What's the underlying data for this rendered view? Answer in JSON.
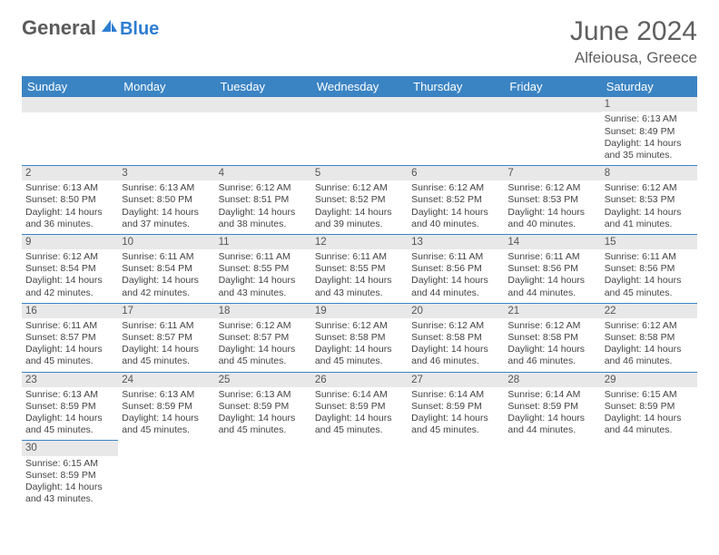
{
  "logo": {
    "general": "General",
    "blue": "Blue"
  },
  "title": "June 2024",
  "location": "Alfeiousa, Greece",
  "colors": {
    "header_bg": "#3b84c4",
    "header_text": "#ffffff",
    "daynum_bg": "#e8e8e8",
    "border": "#3b84c4",
    "text": "#444444",
    "title_text": "#5f5f5f",
    "logo_general": "#5a5a5a",
    "logo_blue": "#2d7dd2"
  },
  "weekdays": [
    "Sunday",
    "Monday",
    "Tuesday",
    "Wednesday",
    "Thursday",
    "Friday",
    "Saturday"
  ],
  "weeks": [
    [
      null,
      null,
      null,
      null,
      null,
      null,
      {
        "n": "1",
        "sr": "Sunrise: 6:13 AM",
        "ss": "Sunset: 8:49 PM",
        "d1": "Daylight: 14 hours",
        "d2": "and 35 minutes."
      }
    ],
    [
      {
        "n": "2",
        "sr": "Sunrise: 6:13 AM",
        "ss": "Sunset: 8:50 PM",
        "d1": "Daylight: 14 hours",
        "d2": "and 36 minutes."
      },
      {
        "n": "3",
        "sr": "Sunrise: 6:13 AM",
        "ss": "Sunset: 8:50 PM",
        "d1": "Daylight: 14 hours",
        "d2": "and 37 minutes."
      },
      {
        "n": "4",
        "sr": "Sunrise: 6:12 AM",
        "ss": "Sunset: 8:51 PM",
        "d1": "Daylight: 14 hours",
        "d2": "and 38 minutes."
      },
      {
        "n": "5",
        "sr": "Sunrise: 6:12 AM",
        "ss": "Sunset: 8:52 PM",
        "d1": "Daylight: 14 hours",
        "d2": "and 39 minutes."
      },
      {
        "n": "6",
        "sr": "Sunrise: 6:12 AM",
        "ss": "Sunset: 8:52 PM",
        "d1": "Daylight: 14 hours",
        "d2": "and 40 minutes."
      },
      {
        "n": "7",
        "sr": "Sunrise: 6:12 AM",
        "ss": "Sunset: 8:53 PM",
        "d1": "Daylight: 14 hours",
        "d2": "and 40 minutes."
      },
      {
        "n": "8",
        "sr": "Sunrise: 6:12 AM",
        "ss": "Sunset: 8:53 PM",
        "d1": "Daylight: 14 hours",
        "d2": "and 41 minutes."
      }
    ],
    [
      {
        "n": "9",
        "sr": "Sunrise: 6:12 AM",
        "ss": "Sunset: 8:54 PM",
        "d1": "Daylight: 14 hours",
        "d2": "and 42 minutes."
      },
      {
        "n": "10",
        "sr": "Sunrise: 6:11 AM",
        "ss": "Sunset: 8:54 PM",
        "d1": "Daylight: 14 hours",
        "d2": "and 42 minutes."
      },
      {
        "n": "11",
        "sr": "Sunrise: 6:11 AM",
        "ss": "Sunset: 8:55 PM",
        "d1": "Daylight: 14 hours",
        "d2": "and 43 minutes."
      },
      {
        "n": "12",
        "sr": "Sunrise: 6:11 AM",
        "ss": "Sunset: 8:55 PM",
        "d1": "Daylight: 14 hours",
        "d2": "and 43 minutes."
      },
      {
        "n": "13",
        "sr": "Sunrise: 6:11 AM",
        "ss": "Sunset: 8:56 PM",
        "d1": "Daylight: 14 hours",
        "d2": "and 44 minutes."
      },
      {
        "n": "14",
        "sr": "Sunrise: 6:11 AM",
        "ss": "Sunset: 8:56 PM",
        "d1": "Daylight: 14 hours",
        "d2": "and 44 minutes."
      },
      {
        "n": "15",
        "sr": "Sunrise: 6:11 AM",
        "ss": "Sunset: 8:56 PM",
        "d1": "Daylight: 14 hours",
        "d2": "and 45 minutes."
      }
    ],
    [
      {
        "n": "16",
        "sr": "Sunrise: 6:11 AM",
        "ss": "Sunset: 8:57 PM",
        "d1": "Daylight: 14 hours",
        "d2": "and 45 minutes."
      },
      {
        "n": "17",
        "sr": "Sunrise: 6:11 AM",
        "ss": "Sunset: 8:57 PM",
        "d1": "Daylight: 14 hours",
        "d2": "and 45 minutes."
      },
      {
        "n": "18",
        "sr": "Sunrise: 6:12 AM",
        "ss": "Sunset: 8:57 PM",
        "d1": "Daylight: 14 hours",
        "d2": "and 45 minutes."
      },
      {
        "n": "19",
        "sr": "Sunrise: 6:12 AM",
        "ss": "Sunset: 8:58 PM",
        "d1": "Daylight: 14 hours",
        "d2": "and 45 minutes."
      },
      {
        "n": "20",
        "sr": "Sunrise: 6:12 AM",
        "ss": "Sunset: 8:58 PM",
        "d1": "Daylight: 14 hours",
        "d2": "and 46 minutes."
      },
      {
        "n": "21",
        "sr": "Sunrise: 6:12 AM",
        "ss": "Sunset: 8:58 PM",
        "d1": "Daylight: 14 hours",
        "d2": "and 46 minutes."
      },
      {
        "n": "22",
        "sr": "Sunrise: 6:12 AM",
        "ss": "Sunset: 8:58 PM",
        "d1": "Daylight: 14 hours",
        "d2": "and 46 minutes."
      }
    ],
    [
      {
        "n": "23",
        "sr": "Sunrise: 6:13 AM",
        "ss": "Sunset: 8:59 PM",
        "d1": "Daylight: 14 hours",
        "d2": "and 45 minutes."
      },
      {
        "n": "24",
        "sr": "Sunrise: 6:13 AM",
        "ss": "Sunset: 8:59 PM",
        "d1": "Daylight: 14 hours",
        "d2": "and 45 minutes."
      },
      {
        "n": "25",
        "sr": "Sunrise: 6:13 AM",
        "ss": "Sunset: 8:59 PM",
        "d1": "Daylight: 14 hours",
        "d2": "and 45 minutes."
      },
      {
        "n": "26",
        "sr": "Sunrise: 6:14 AM",
        "ss": "Sunset: 8:59 PM",
        "d1": "Daylight: 14 hours",
        "d2": "and 45 minutes."
      },
      {
        "n": "27",
        "sr": "Sunrise: 6:14 AM",
        "ss": "Sunset: 8:59 PM",
        "d1": "Daylight: 14 hours",
        "d2": "and 45 minutes."
      },
      {
        "n": "28",
        "sr": "Sunrise: 6:14 AM",
        "ss": "Sunset: 8:59 PM",
        "d1": "Daylight: 14 hours",
        "d2": "and 44 minutes."
      },
      {
        "n": "29",
        "sr": "Sunrise: 6:15 AM",
        "ss": "Sunset: 8:59 PM",
        "d1": "Daylight: 14 hours",
        "d2": "and 44 minutes."
      }
    ],
    [
      {
        "n": "30",
        "sr": "Sunrise: 6:15 AM",
        "ss": "Sunset: 8:59 PM",
        "d1": "Daylight: 14 hours",
        "d2": "and 43 minutes."
      },
      null,
      null,
      null,
      null,
      null,
      null
    ]
  ]
}
